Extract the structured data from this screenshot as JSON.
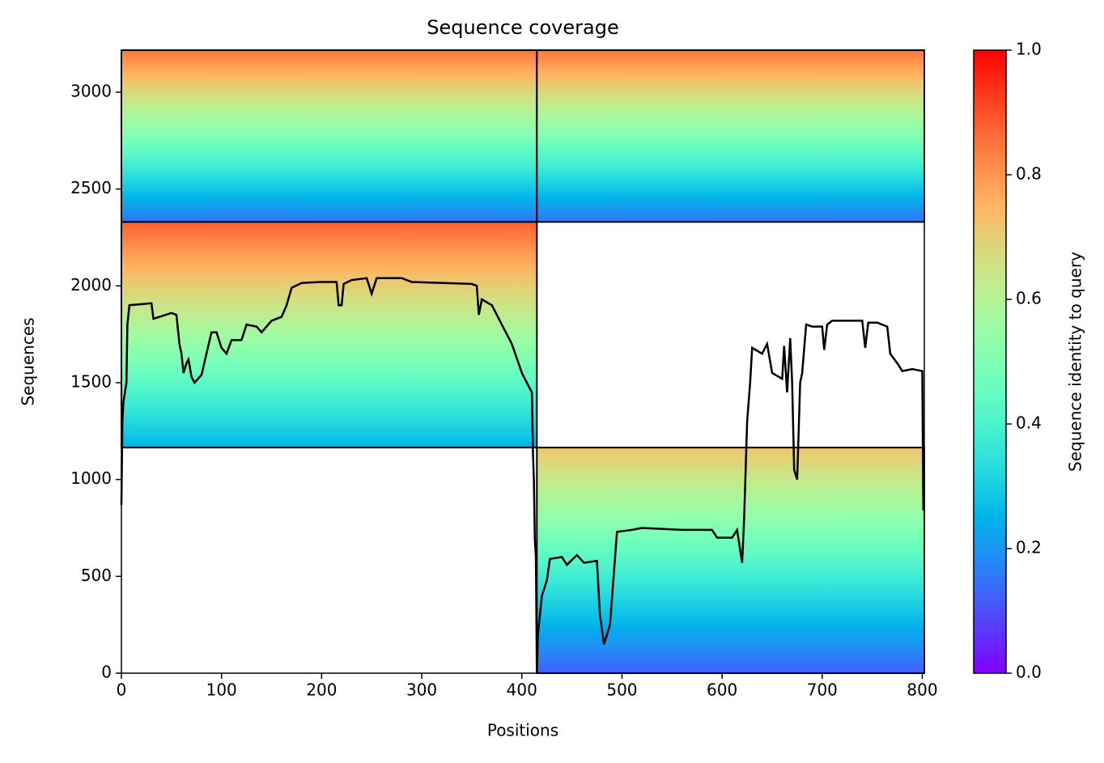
{
  "chart_data": {
    "type": "coverage",
    "title": "Sequence coverage",
    "xlabel": "Positions",
    "ylabel": "Sequences",
    "xlim": [
      0,
      802
    ],
    "ylim": [
      0,
      3217
    ],
    "xticks": [
      0,
      100,
      200,
      300,
      400,
      500,
      600,
      700,
      800
    ],
    "yticks": [
      0,
      500,
      1000,
      1500,
      2000,
      2500,
      3000
    ],
    "colormap": "rainbow",
    "colorbar": {
      "label": "Sequence identity to query",
      "lim": [
        0,
        1
      ],
      "ticks": [
        {
          "value": 0,
          "label": "0.0"
        },
        {
          "value": 0.2,
          "label": "0.2"
        },
        {
          "value": 0.4,
          "label": "0.4"
        },
        {
          "value": 0.6,
          "label": "0.6"
        },
        {
          "value": 0.8,
          "label": "0.8"
        },
        {
          "value": 1,
          "label": "1.0"
        }
      ]
    },
    "blocks": [
      {
        "x": [
          0,
          415
        ],
        "y": [
          2330,
          3217
        ],
        "identity": [
          0.15,
          0.85
        ]
      },
      {
        "x": [
          415,
          802
        ],
        "y": [
          2330,
          3217
        ],
        "identity": [
          0.15,
          0.85
        ]
      },
      {
        "x": [
          0,
          415
        ],
        "y": [
          1165,
          2330
        ],
        "identity": [
          0.25,
          0.88
        ]
      },
      {
        "x": [
          415,
          802
        ],
        "y": [
          0,
          1165
        ],
        "identity": [
          0.12,
          0.72
        ]
      }
    ],
    "line_color": "#000000",
    "coverage": {
      "x": [
        0,
        1,
        2,
        5,
        6,
        8,
        30,
        32,
        50,
        55,
        58,
        60,
        62,
        65,
        67,
        70,
        73,
        80,
        85,
        90,
        95,
        100,
        105,
        110,
        120,
        125,
        135,
        140,
        150,
        160,
        165,
        170,
        180,
        200,
        215,
        217,
        220,
        222,
        230,
        245,
        250,
        255,
        280,
        290,
        350,
        355,
        357,
        360,
        370,
        380,
        390,
        400,
        405,
        410,
        411,
        412,
        413,
        414,
        415,
        416,
        420,
        425,
        428,
        440,
        445,
        455,
        462,
        475,
        478,
        482,
        485,
        488,
        495,
        510,
        520,
        560,
        590,
        595,
        610,
        615,
        620,
        622,
        625,
        628,
        630,
        640,
        645,
        650,
        660,
        662,
        665,
        668,
        670,
        672,
        675,
        678,
        680,
        684,
        690,
        700,
        702,
        705,
        710,
        740,
        743,
        746,
        755,
        760,
        765,
        768,
        775,
        780,
        790,
        800,
        801
      ],
      "y": [
        870,
        1300,
        1400,
        1500,
        1800,
        1900,
        1910,
        1830,
        1860,
        1850,
        1700,
        1650,
        1550,
        1600,
        1620,
        1530,
        1500,
        1540,
        1650,
        1760,
        1760,
        1680,
        1650,
        1720,
        1720,
        1800,
        1790,
        1760,
        1820,
        1840,
        1900,
        1990,
        2015,
        2020,
        2020,
        1900,
        1900,
        2010,
        2030,
        2040,
        1960,
        2040,
        2040,
        2020,
        2010,
        2000,
        1850,
        1930,
        1900,
        1800,
        1700,
        1550,
        1500,
        1450,
        1150,
        1000,
        690,
        600,
        0,
        200,
        400,
        480,
        590,
        600,
        560,
        610,
        570,
        580,
        300,
        150,
        200,
        250,
        730,
        740,
        750,
        740,
        740,
        700,
        700,
        740,
        570,
        800,
        1300,
        1500,
        1680,
        1650,
        1700,
        1550,
        1520,
        1690,
        1450,
        1730,
        1500,
        1050,
        1000,
        1500,
        1550,
        1800,
        1790,
        1790,
        1670,
        1800,
        1820,
        1820,
        1680,
        1810,
        1810,
        1800,
        1790,
        1650,
        1600,
        1560,
        1570,
        1560,
        840
      ]
    }
  }
}
